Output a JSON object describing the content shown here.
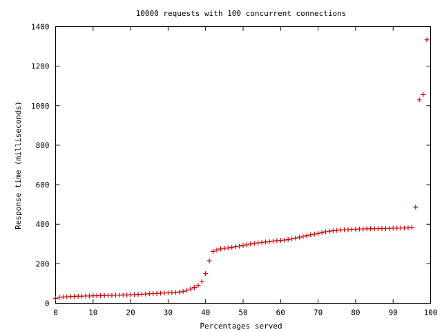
{
  "chart_data": {
    "type": "scatter",
    "title": "10000 requests with 100 concurrent connections",
    "xlabel": "Percentages served",
    "ylabel": "Response time (milliseconds)",
    "xlim": [
      0,
      100
    ],
    "ylim": [
      0,
      1400
    ],
    "xticks": [
      0,
      10,
      20,
      30,
      40,
      50,
      60,
      70,
      80,
      90,
      100
    ],
    "yticks": [
      0,
      200,
      400,
      600,
      800,
      1000,
      1200,
      1400
    ],
    "grid": false,
    "legend": "none",
    "marker": "plus",
    "color": "#cc0000",
    "series": [
      {
        "x": [
          0,
          1,
          2,
          3,
          4,
          5,
          6,
          7,
          8,
          9,
          10,
          11,
          12,
          13,
          14,
          15,
          16,
          17,
          18,
          19,
          20,
          21,
          22,
          23,
          24,
          25,
          26,
          27,
          28,
          29,
          30,
          31,
          32,
          33,
          34,
          35,
          36,
          37,
          38,
          39,
          40,
          41,
          42,
          43,
          44,
          45,
          46,
          47,
          48,
          49,
          50,
          51,
          52,
          53,
          54,
          55,
          56,
          57,
          58,
          59,
          60,
          61,
          62,
          63,
          64,
          65,
          66,
          67,
          68,
          69,
          70,
          71,
          72,
          73,
          74,
          75,
          76,
          77,
          78,
          79,
          80,
          81,
          82,
          83,
          84,
          85,
          86,
          87,
          88,
          89,
          90,
          91,
          92,
          93,
          94,
          95,
          96,
          97,
          98,
          99
        ],
        "y": [
          25,
          30,
          32,
          33,
          34,
          35,
          36,
          36,
          37,
          37,
          38,
          38,
          39,
          39,
          40,
          40,
          41,
          41,
          42,
          42,
          43,
          44,
          45,
          46,
          47,
          48,
          49,
          50,
          51,
          52,
          53,
          54,
          55,
          57,
          60,
          65,
          72,
          80,
          90,
          110,
          150,
          215,
          263,
          270,
          275,
          278,
          280,
          283,
          286,
          289,
          293,
          296,
          300,
          303,
          306,
          308,
          310,
          312,
          315,
          317,
          318,
          320,
          322,
          326,
          330,
          334,
          338,
          342,
          346,
          350,
          354,
          358,
          362,
          365,
          367,
          369,
          371,
          372,
          373,
          374,
          375,
          376,
          376,
          377,
          377,
          377,
          378,
          378,
          378,
          379,
          380,
          380,
          381,
          381,
          382,
          384,
          487,
          1030,
          1057,
          1333
        ]
      }
    ]
  }
}
